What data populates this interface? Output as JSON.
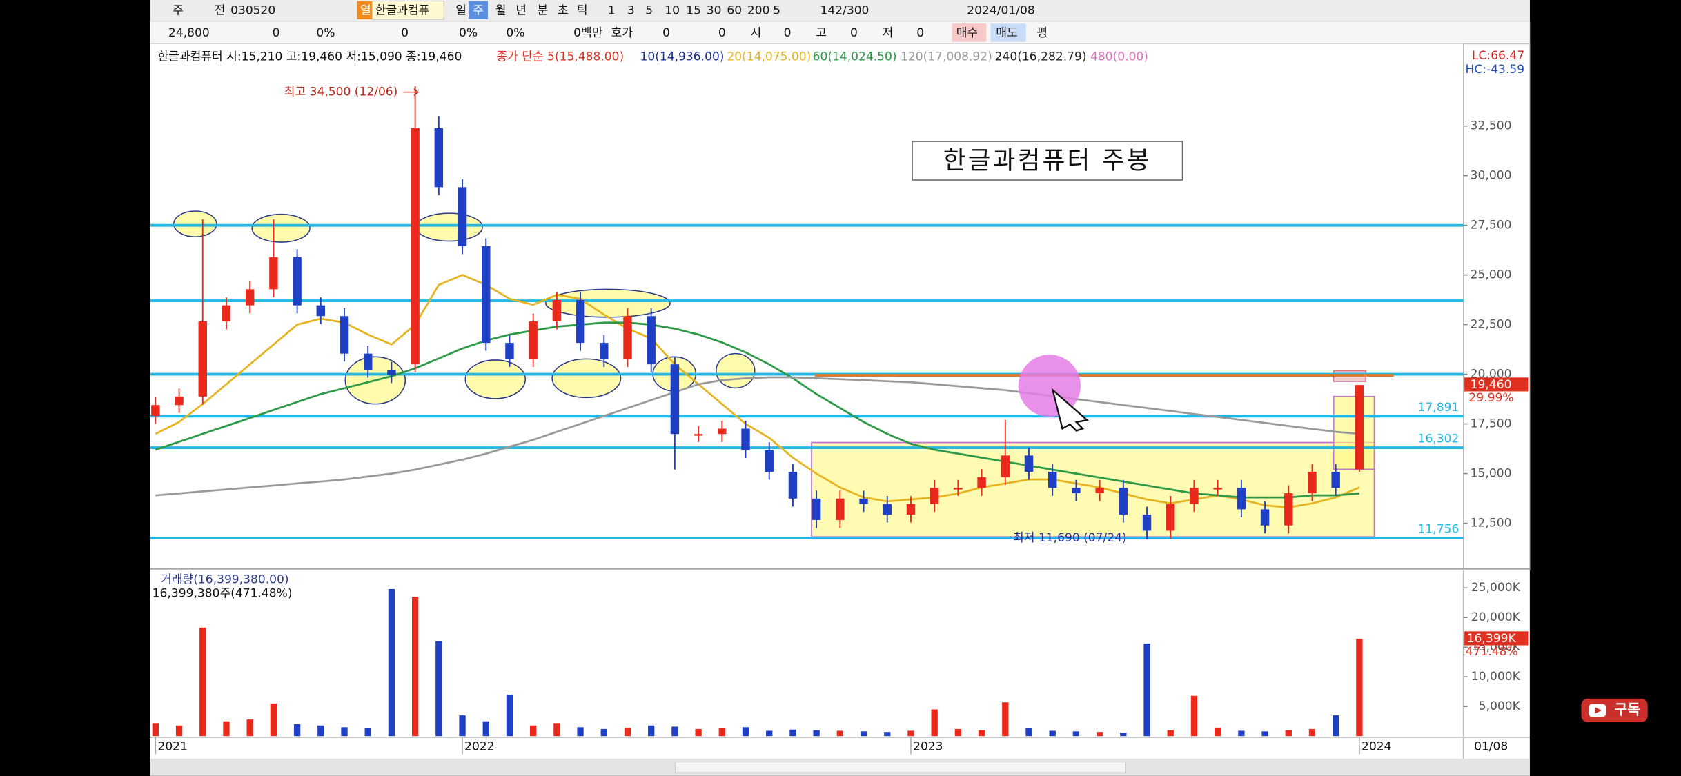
{
  "toolbar": {
    "row1": [
      "주",
      "전",
      "030520",
      "열",
      "한글과컴퓨",
      "일",
      "주",
      "월",
      "년",
      "분",
      "초",
      "틱",
      "1",
      "3",
      "5",
      "10",
      "15",
      "30",
      "60",
      "200",
      "5",
      "142/300",
      "2024/01/08"
    ],
    "row2": [
      "24,800",
      "0",
      "0%",
      "0",
      "0%",
      "0%",
      "0백만",
      "호가",
      "0",
      "0",
      "시",
      "0",
      "고",
      "0",
      "저",
      "0",
      "매수",
      "매도",
      "평"
    ]
  },
  "legend": {
    "stock": "한글과컴퓨터 시:15,210 고:19,460 저:15,090 종:19,460",
    "extra": [
      {
        "text": "종가 단순 5(15,488.00)",
        "color": "#e03020"
      },
      {
        "text": "10(14,936.00)",
        "color": "#1a2f9a"
      },
      {
        "text": "240(16,282.79)",
        "color": "#222222"
      },
      {
        "text": "480(0.00)",
        "color": "#e070c0"
      }
    ]
  },
  "youtube": "구독",
  "chart_data": {
    "type": "candlestick",
    "title": "한글과컴퓨터 주봉",
    "categories": [
      "2021",
      null,
      null,
      null,
      null,
      null,
      null,
      null,
      null,
      null,
      null,
      null,
      null,
      "2022",
      null,
      null,
      null,
      null,
      null,
      null,
      null,
      null,
      null,
      null,
      null,
      null,
      null,
      null,
      null,
      null,
      null,
      null,
      "2023",
      null,
      null,
      null,
      null,
      null,
      null,
      null,
      null,
      null,
      null,
      null,
      null,
      null,
      null,
      null,
      null,
      null,
      null,
      "2024"
    ],
    "open": [
      17900,
      18450,
      18880,
      22660,
      23470,
      24280,
      25900,
      23470,
      22930,
      21040,
      20230,
      20500,
      32390,
      29420,
      26450,
      21580,
      20770,
      22660,
      23740,
      21580,
      20770,
      22930,
      20500,
      16990,
      16990,
      17260,
      16180,
      15090,
      13740,
      12660,
      13740,
      13470,
      12930,
      13470,
      14280,
      14280,
      14820,
      15910,
      15090,
      14280,
      14010,
      14280,
      12930,
      12120,
      13470,
      14280,
      14280,
      13200,
      12390,
      14010,
      15090,
      15210
    ],
    "high": [
      18850,
      19280,
      27800,
      23870,
      24680,
      27800,
      26300,
      23870,
      23330,
      21440,
      20630,
      34500,
      33000,
      29820,
      26850,
      21980,
      23060,
      24140,
      24140,
      21980,
      23330,
      23330,
      20900,
      17390,
      17660,
      17660,
      16580,
      15490,
      14140,
      14140,
      14140,
      13870,
      13870,
      14680,
      14680,
      15220,
      17700,
      16310,
      15490,
      14680,
      14680,
      14680,
      13330,
      13870,
      14680,
      14680,
      14680,
      13600,
      14410,
      15490,
      15490,
      19460
    ],
    "low": [
      17500,
      18050,
      18480,
      22260,
      23070,
      23880,
      23070,
      22530,
      20640,
      19830,
      19560,
      20100,
      29020,
      26050,
      21180,
      20370,
      20370,
      22260,
      21180,
      20370,
      20370,
      20100,
      15200,
      16590,
      16590,
      15780,
      14690,
      13340,
      12260,
      12260,
      13070,
      12530,
      12530,
      13070,
      13880,
      13880,
      14420,
      14690,
      13880,
      13610,
      13610,
      12530,
      11690,
      11720,
      13070,
      13880,
      12800,
      11990,
      11990,
      13610,
      13880,
      15090
    ],
    "close": [
      18450,
      18880,
      22660,
      23470,
      24280,
      25900,
      23470,
      22930,
      21040,
      20230,
      19960,
      32390,
      29420,
      26450,
      21580,
      20770,
      22660,
      23740,
      21580,
      20770,
      22930,
      20500,
      16990,
      16990,
      17260,
      16180,
      15090,
      13740,
      12660,
      13740,
      13470,
      12930,
      13470,
      14280,
      14280,
      14820,
      15910,
      15090,
      14280,
      14010,
      14280,
      12930,
      12120,
      13470,
      14280,
      14280,
      13200,
      12390,
      14010,
      15090,
      14280,
      19460
    ],
    "up_color": "#e8291c",
    "down_color": "#1f3fc4",
    "ylim": [
      10250,
      35500
    ],
    "yticks": [
      {
        "value": 32500,
        "label": "32,500"
      },
      {
        "value": 30000,
        "label": "30,000"
      },
      {
        "value": 27500,
        "label": "27,500"
      },
      {
        "value": 25000,
        "label": "25,000"
      },
      {
        "value": 22500,
        "label": "22,500"
      },
      {
        "value": 20000,
        "label": "20,000"
      },
      {
        "value": 17500,
        "label": "17,500"
      },
      {
        "value": 15000,
        "label": "15,000"
      },
      {
        "value": 12500,
        "label": "12,500"
      }
    ],
    "ma": [
      {
        "name": "20(14,075.00)",
        "color": "#e6b422",
        "values": [
          17000,
          17600,
          18500,
          19500,
          20500,
          21500,
          22500,
          22800,
          22600,
          22000,
          21500,
          22500,
          24500,
          25000,
          24500,
          23800,
          23500,
          24000,
          23800,
          23000,
          22300,
          21800,
          20500,
          19500,
          18500,
          17500,
          16800,
          15800,
          15000,
          14300,
          13800,
          13600,
          13700,
          13800,
          14000,
          14300,
          14500,
          14700,
          14700,
          14500,
          14300,
          14000,
          13700,
          13500,
          13700,
          13900,
          13700,
          13400,
          13300,
          13500,
          13800,
          14300
        ]
      },
      {
        "name": "60(14,024.50)",
        "color": "#2e9a48",
        "values": [
          16200,
          16600,
          17000,
          17400,
          17800,
          18200,
          18600,
          19000,
          19300,
          19600,
          19900,
          20300,
          20800,
          21300,
          21700,
          22000,
          22200,
          22400,
          22500,
          22600,
          22600,
          22500,
          22300,
          22000,
          21600,
          21100,
          20500,
          19800,
          19000,
          18300,
          17600,
          17000,
          16500,
          16200,
          16000,
          15800,
          15600,
          15400,
          15200,
          15000,
          14800,
          14600,
          14400,
          14200,
          14000,
          13900,
          13800,
          13800,
          13800,
          13900,
          13900,
          14000
        ]
      },
      {
        "name": "120(17,008.92)",
        "color": "#9a9a9a",
        "values": [
          13900,
          14000,
          14100,
          14200,
          14300,
          14400,
          14500,
          14600,
          14700,
          14850,
          15000,
          15200,
          15450,
          15700,
          16000,
          16350,
          16700,
          17100,
          17500,
          17900,
          18300,
          18700,
          19100,
          19500,
          19700,
          19800,
          19850,
          19850,
          19800,
          19750,
          19700,
          19650,
          19600,
          19500,
          19400,
          19300,
          19200,
          19050,
          18900,
          18750,
          18600,
          18450,
          18300,
          18150,
          18000,
          17850,
          17700,
          17550,
          17400,
          17250,
          17100,
          17000
        ]
      }
    ],
    "hlines": [
      {
        "value": 27500,
        "color": "#22b8e6"
      },
      {
        "value": 23700,
        "color": "#22b8e6"
      },
      {
        "value": 20000,
        "color": "#22b8e6"
      },
      {
        "value": 19950,
        "color": "#e07a2a"
      },
      {
        "value": 17891,
        "color": "#22b8e6",
        "label": "17,891"
      },
      {
        "value": 16302,
        "color": "#22b8e6",
        "label": "16,302"
      },
      {
        "value": 11756,
        "color": "#22b8e6",
        "label": "11,756"
      }
    ],
    "high_note": "최고 34,500 (12/06)",
    "low_note": "최저 11,690 (07/24)",
    "last_price": {
      "value": 19460,
      "label": "19,460"
    },
    "change": "29.99%",
    "lc": "LC:66.47",
    "hc": "HC:-43.59",
    "x_end_label": "01/08",
    "volume": {
      "title": "거래량(16,399,380.00)",
      "subtitle": "16,399,380주(471.48%)",
      "values": [
        2200,
        1800,
        18300,
        2500,
        2800,
        5500,
        2000,
        1800,
        1500,
        1300,
        24800,
        23500,
        16000,
        3500,
        2500,
        7000,
        1800,
        2200,
        1500,
        1200,
        1400,
        1800,
        1600,
        1200,
        1300,
        1500,
        900,
        1100,
        1000,
        900,
        800,
        700,
        900,
        4500,
        1200,
        1000,
        5700,
        1300,
        900,
        800,
        700,
        600,
        15600,
        1000,
        6800,
        1400,
        900,
        800,
        1000,
        1200,
        3500,
        16399
      ],
      "ylim": [
        0,
        28000
      ],
      "yticks": [
        {
          "value": 25000,
          "label": "25,000K"
        },
        {
          "value": 20000,
          "label": "20,000K"
        },
        {
          "value": 15000,
          "label": "15,000K"
        },
        {
          "value": 10000,
          "label": "10,000K"
        },
        {
          "value": 5000,
          "label": "5,000K"
        }
      ],
      "last": {
        "value": 16399,
        "label": "16,399K"
      },
      "change": "471.48%"
    }
  }
}
